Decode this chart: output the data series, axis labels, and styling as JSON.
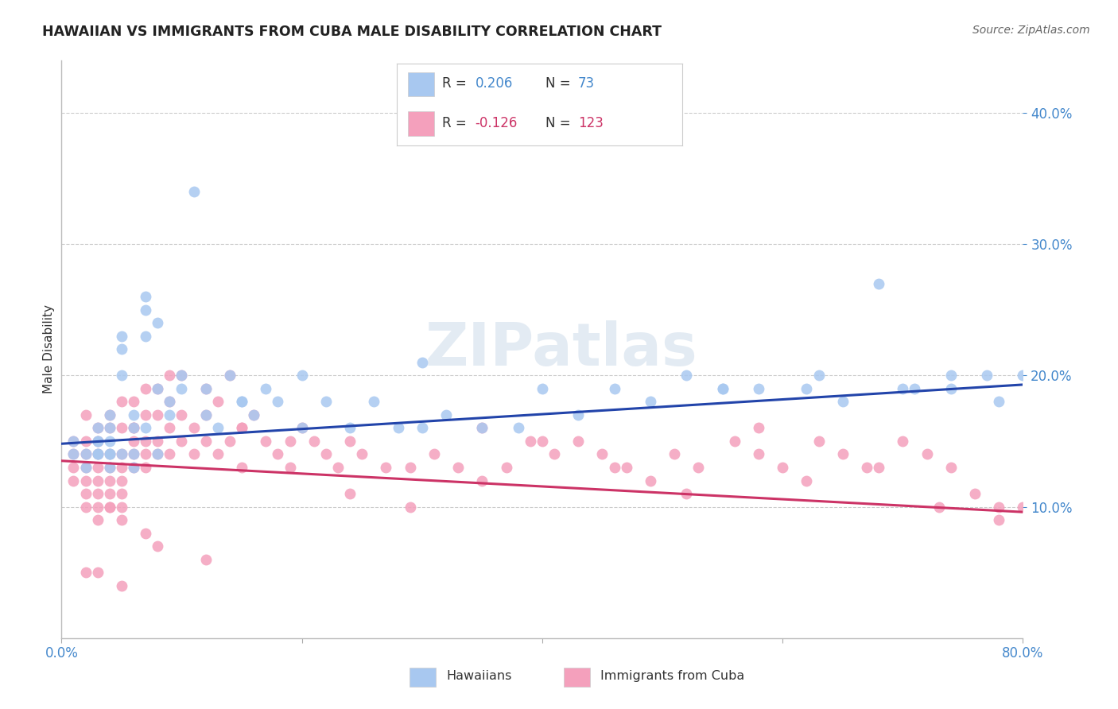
{
  "title": "HAWAIIAN VS IMMIGRANTS FROM CUBA MALE DISABILITY CORRELATION CHART",
  "source": "Source: ZipAtlas.com",
  "ylabel": "Male Disability",
  "xlim": [
    0.0,
    0.8
  ],
  "ylim": [
    0.0,
    0.44
  ],
  "yticks": [
    0.1,
    0.2,
    0.3,
    0.4
  ],
  "ytick_labels": [
    "10.0%",
    "20.0%",
    "30.0%",
    "40.0%"
  ],
  "xticks": [
    0.0,
    0.2,
    0.4,
    0.6,
    0.8
  ],
  "xtick_labels_show": [
    "0.0%",
    "80.0%"
  ],
  "hawaiian_color": "#A8C8F0",
  "cuba_color": "#F4A0BC",
  "trend_blue": "#2244AA",
  "trend_pink": "#CC3366",
  "r_blue": "#4488CC",
  "r_pink": "#CC3366",
  "background_color": "#FFFFFF",
  "hawaiian_trend_x": [
    0.0,
    0.8
  ],
  "hawaiian_trend_y": [
    0.148,
    0.193
  ],
  "cuba_trend_y": [
    0.135,
    0.096
  ],
  "hawaiians_x": [
    0.01,
    0.01,
    0.02,
    0.02,
    0.03,
    0.03,
    0.03,
    0.03,
    0.03,
    0.04,
    0.04,
    0.04,
    0.04,
    0.04,
    0.04,
    0.05,
    0.05,
    0.05,
    0.05,
    0.06,
    0.06,
    0.06,
    0.06,
    0.07,
    0.07,
    0.07,
    0.07,
    0.08,
    0.08,
    0.08,
    0.09,
    0.09,
    0.1,
    0.1,
    0.11,
    0.12,
    0.12,
    0.13,
    0.14,
    0.15,
    0.16,
    0.17,
    0.18,
    0.2,
    0.22,
    0.24,
    0.26,
    0.28,
    0.3,
    0.32,
    0.35,
    0.38,
    0.4,
    0.43,
    0.46,
    0.49,
    0.52,
    0.55,
    0.58,
    0.62,
    0.65,
    0.68,
    0.71,
    0.74,
    0.77,
    0.3,
    0.55,
    0.63,
    0.7,
    0.74,
    0.78,
    0.8,
    0.15,
    0.2
  ],
  "hawaiians_y": [
    0.14,
    0.15,
    0.13,
    0.14,
    0.14,
    0.15,
    0.16,
    0.15,
    0.14,
    0.14,
    0.15,
    0.16,
    0.17,
    0.14,
    0.13,
    0.14,
    0.22,
    0.2,
    0.23,
    0.16,
    0.17,
    0.14,
    0.13,
    0.25,
    0.23,
    0.16,
    0.26,
    0.24,
    0.14,
    0.19,
    0.18,
    0.17,
    0.19,
    0.2,
    0.34,
    0.19,
    0.17,
    0.16,
    0.2,
    0.18,
    0.17,
    0.19,
    0.18,
    0.16,
    0.18,
    0.16,
    0.18,
    0.16,
    0.16,
    0.17,
    0.16,
    0.16,
    0.19,
    0.17,
    0.19,
    0.18,
    0.2,
    0.19,
    0.19,
    0.19,
    0.18,
    0.27,
    0.19,
    0.2,
    0.2,
    0.21,
    0.19,
    0.2,
    0.19,
    0.19,
    0.18,
    0.2,
    0.18,
    0.2
  ],
  "cuba_x": [
    0.01,
    0.01,
    0.01,
    0.01,
    0.02,
    0.02,
    0.02,
    0.02,
    0.02,
    0.02,
    0.02,
    0.03,
    0.03,
    0.03,
    0.03,
    0.03,
    0.03,
    0.03,
    0.03,
    0.04,
    0.04,
    0.04,
    0.04,
    0.04,
    0.04,
    0.04,
    0.05,
    0.05,
    0.05,
    0.05,
    0.05,
    0.05,
    0.05,
    0.06,
    0.06,
    0.06,
    0.06,
    0.06,
    0.07,
    0.07,
    0.07,
    0.07,
    0.07,
    0.08,
    0.08,
    0.08,
    0.08,
    0.09,
    0.09,
    0.09,
    0.1,
    0.1,
    0.1,
    0.11,
    0.11,
    0.12,
    0.12,
    0.13,
    0.13,
    0.14,
    0.14,
    0.15,
    0.15,
    0.16,
    0.17,
    0.18,
    0.19,
    0.2,
    0.21,
    0.22,
    0.23,
    0.24,
    0.25,
    0.27,
    0.29,
    0.31,
    0.33,
    0.35,
    0.37,
    0.39,
    0.41,
    0.43,
    0.45,
    0.47,
    0.49,
    0.51,
    0.53,
    0.56,
    0.58,
    0.6,
    0.62,
    0.65,
    0.67,
    0.7,
    0.72,
    0.74,
    0.76,
    0.78,
    0.8,
    0.04,
    0.05,
    0.06,
    0.07,
    0.09,
    0.12,
    0.15,
    0.19,
    0.24,
    0.29,
    0.35,
    0.4,
    0.46,
    0.52,
    0.58,
    0.63,
    0.68,
    0.73,
    0.78,
    0.02,
    0.03,
    0.05,
    0.08,
    0.12
  ],
  "cuba_y": [
    0.15,
    0.14,
    0.13,
    0.12,
    0.17,
    0.15,
    0.14,
    0.13,
    0.12,
    0.11,
    0.1,
    0.16,
    0.15,
    0.14,
    0.13,
    0.12,
    0.11,
    0.1,
    0.09,
    0.17,
    0.16,
    0.14,
    0.13,
    0.12,
    0.11,
    0.1,
    0.18,
    0.16,
    0.14,
    0.13,
    0.12,
    0.11,
    0.1,
    0.18,
    0.16,
    0.15,
    0.14,
    0.13,
    0.19,
    0.17,
    0.15,
    0.14,
    0.13,
    0.19,
    0.17,
    0.15,
    0.14,
    0.18,
    0.16,
    0.14,
    0.2,
    0.17,
    0.15,
    0.16,
    0.14,
    0.19,
    0.15,
    0.18,
    0.14,
    0.2,
    0.15,
    0.16,
    0.13,
    0.17,
    0.15,
    0.14,
    0.13,
    0.16,
    0.15,
    0.14,
    0.13,
    0.15,
    0.14,
    0.13,
    0.13,
    0.14,
    0.13,
    0.12,
    0.13,
    0.15,
    0.14,
    0.15,
    0.14,
    0.13,
    0.12,
    0.14,
    0.13,
    0.15,
    0.14,
    0.13,
    0.12,
    0.14,
    0.13,
    0.15,
    0.14,
    0.13,
    0.11,
    0.1,
    0.1,
    0.1,
    0.09,
    0.16,
    0.08,
    0.2,
    0.17,
    0.16,
    0.15,
    0.11,
    0.1,
    0.16,
    0.15,
    0.13,
    0.11,
    0.16,
    0.15,
    0.13,
    0.1,
    0.09,
    0.05,
    0.05,
    0.04,
    0.07,
    0.06
  ]
}
